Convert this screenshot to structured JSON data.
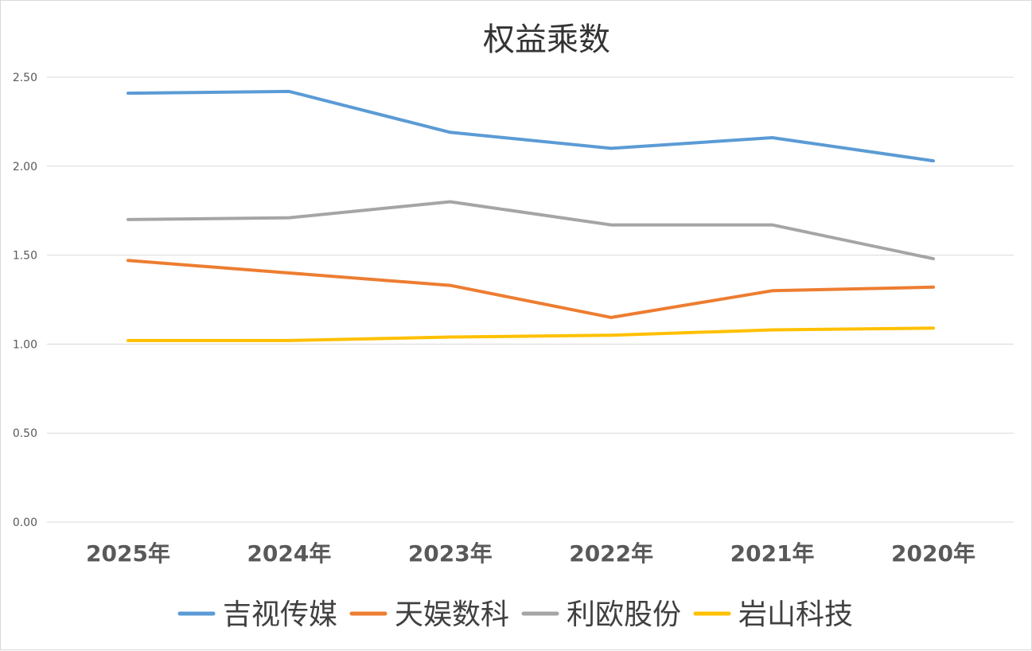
{
  "chart_data": {
    "type": "line",
    "title": "权益乘数",
    "categories": [
      "2025年",
      "2024年",
      "2023年",
      "2022年",
      "2021年",
      "2020年"
    ],
    "ylim": [
      0,
      2.5
    ],
    "yticks": [
      "0.00",
      "0.50",
      "1.00",
      "1.50",
      "2.00",
      "2.50"
    ],
    "grid": true,
    "legend_position": "bottom",
    "series": [
      {
        "name": "吉视传媒",
        "color": "#5b9bd5",
        "values": [
          2.41,
          2.42,
          2.19,
          2.1,
          2.16,
          2.03
        ]
      },
      {
        "name": "天娱数科",
        "color": "#ed7d31",
        "values": [
          1.47,
          1.4,
          1.33,
          1.15,
          1.3,
          1.32
        ]
      },
      {
        "name": "利欧股份",
        "color": "#a5a5a5",
        "values": [
          1.7,
          1.71,
          1.8,
          1.67,
          1.67,
          1.48
        ]
      },
      {
        "name": "岩山科技",
        "color": "#ffc000",
        "values": [
          1.02,
          1.02,
          1.04,
          1.05,
          1.08,
          1.09
        ]
      }
    ]
  }
}
